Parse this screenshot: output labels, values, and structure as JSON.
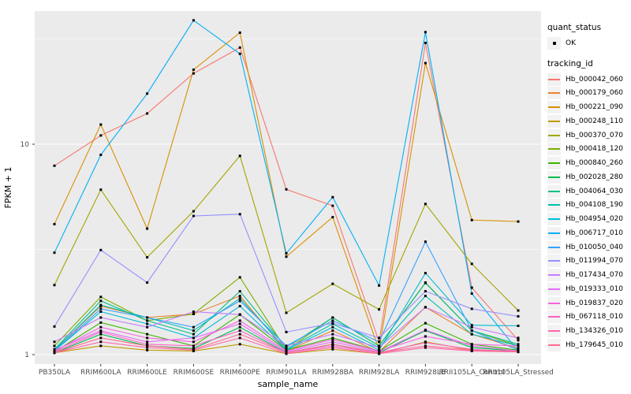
{
  "figure": {
    "background": "#FFFFFF",
    "panel_bg": "#EBEBEB",
    "grid_color": "#FFFFFF",
    "axis_text_color": "#4D4D4D",
    "tick_mark_color": "#333333",
    "point_color": "#000000",
    "legend_key_bg": "#F2F2F2"
  },
  "axes": {
    "x_title": "sample_name",
    "y_title": "FPKM + 1",
    "y_tick_labels": [
      "10",
      "1"
    ]
  },
  "legend": {
    "quant_status_title": "quant_status",
    "quant_status_items": [
      {
        "label": "OK",
        "marker": "point"
      }
    ],
    "tracking_title": "tracking_id"
  },
  "chart_data": {
    "type": "line",
    "title": "",
    "xlabel": "sample_name",
    "ylabel": "FPKM + 1",
    "y_scale": "log10",
    "y_major_ticks": [
      1,
      10
    ],
    "y_minor_gridlines": [
      3.162,
      31.62
    ],
    "ylim_log10": [
      -0.05,
      1.64
    ],
    "grid": true,
    "legend_position": "right",
    "marker": "black-point",
    "categories": [
      "PB350LA",
      "RRIM600LA",
      "RRIM600LE",
      "RRIM600SE",
      "RRIM600PE",
      "RRIM901LA",
      "RRIM928BA",
      "RRIM928LA",
      "RRIM928LB",
      "RRII105LA_Control",
      "RRII105LA_Stressed"
    ],
    "series": [
      {
        "name": "Hb_000042_060",
        "color": "#F8766D",
        "values": [
          7.9,
          11.0,
          14.0,
          21.7,
          28.8,
          6.1,
          5.1,
          1.15,
          30.3,
          2.08,
          1.17
        ]
      },
      {
        "name": "Hb_000179_060",
        "color": "#EA8331",
        "values": [
          1.05,
          1.7,
          1.5,
          1.56,
          1.9,
          1.04,
          1.3,
          1.03,
          1.68,
          1.25,
          1.07
        ]
      },
      {
        "name": "Hb_000221_090",
        "color": "#D89000",
        "values": [
          4.17,
          12.4,
          3.97,
          22.6,
          33.9,
          2.92,
          4.5,
          1.05,
          24.3,
          4.36,
          4.29
        ]
      },
      {
        "name": "Hb_000248_110",
        "color": "#C09B00",
        "values": [
          1.02,
          1.1,
          1.05,
          1.04,
          1.12,
          1.01,
          1.06,
          1.01,
          1.15,
          1.05,
          1.03
        ]
      },
      {
        "name": "Hb_000370_070",
        "color": "#A3A500",
        "values": [
          2.14,
          6.08,
          2.9,
          4.8,
          8.8,
          1.58,
          2.17,
          1.64,
          5.2,
          2.7,
          1.62
        ]
      },
      {
        "name": "Hb_000418_120",
        "color": "#7CAE00",
        "values": [
          1.1,
          1.88,
          1.45,
          1.56,
          2.33,
          1.05,
          1.5,
          1.1,
          2.2,
          1.3,
          1.1
        ]
      },
      {
        "name": "Hb_000840_260",
        "color": "#39B600",
        "values": [
          1.03,
          1.42,
          1.25,
          1.1,
          1.55,
          1.05,
          1.2,
          1.04,
          1.41,
          1.12,
          1.05
        ]
      },
      {
        "name": "Hb_002028_280",
        "color": "#00BB4E",
        "values": [
          1.02,
          1.25,
          1.1,
          1.07,
          1.35,
          1.02,
          1.12,
          1.02,
          1.3,
          1.08,
          1.04
        ]
      },
      {
        "name": "Hb_004064_030",
        "color": "#00C087",
        "values": [
          1.06,
          1.8,
          1.45,
          1.25,
          2.0,
          1.08,
          1.5,
          1.1,
          2.19,
          1.3,
          1.12
        ]
      },
      {
        "name": "Hb_004108_190",
        "color": "#00C0AF",
        "values": [
          1.05,
          1.72,
          1.5,
          1.3,
          1.85,
          1.06,
          1.4,
          1.08,
          1.9,
          1.25,
          1.1
        ]
      },
      {
        "name": "Hb_004954_020",
        "color": "#00BCD8",
        "values": [
          1.04,
          1.6,
          1.4,
          1.2,
          1.7,
          1.05,
          1.35,
          1.05,
          2.44,
          1.38,
          1.37
        ]
      },
      {
        "name": "Hb_006717_010",
        "color": "#00B0F6",
        "values": [
          3.05,
          8.9,
          17.4,
          38.8,
          26.9,
          3.03,
          5.6,
          2.13,
          34.1,
          1.95,
          1.04
        ]
      },
      {
        "name": "Hb_010050_040",
        "color": "#35A2FF",
        "values": [
          1.04,
          1.65,
          1.5,
          1.35,
          1.8,
          1.1,
          1.45,
          1.15,
          3.44,
          1.3,
          1.05
        ]
      },
      {
        "name": "Hb_011994_070",
        "color": "#9590FF",
        "values": [
          1.36,
          3.14,
          2.2,
          4.56,
          4.65,
          1.28,
          1.41,
          1.2,
          2.0,
          1.65,
          1.52
        ]
      },
      {
        "name": "Hb_017434_070",
        "color": "#C77CFF",
        "values": [
          1.15,
          1.5,
          1.35,
          1.6,
          1.55,
          1.1,
          1.25,
          1.08,
          1.68,
          1.35,
          1.2
        ]
      },
      {
        "name": "Hb_019333_010",
        "color": "#E36EF6",
        "values": [
          1.05,
          1.3,
          1.15,
          1.2,
          1.4,
          1.03,
          1.15,
          1.03,
          1.31,
          1.1,
          1.04
        ]
      },
      {
        "name": "Hb_019837_020",
        "color": "#F763E0",
        "values": [
          1.04,
          1.35,
          1.2,
          1.15,
          1.45,
          1.04,
          1.18,
          1.04,
          1.22,
          1.12,
          1.1
        ]
      },
      {
        "name": "Hb_067118_010",
        "color": "#FF61C9",
        "values": [
          1.03,
          1.28,
          1.12,
          1.1,
          1.3,
          1.02,
          1.1,
          1.02,
          1.14,
          1.06,
          1.03
        ]
      },
      {
        "name": "Hb_134326_010",
        "color": "#FF67AC",
        "values": [
          1.02,
          1.15,
          1.08,
          1.05,
          1.2,
          1.01,
          1.08,
          1.01,
          1.08,
          1.04,
          1.03
        ]
      },
      {
        "name": "Hb_179645_010",
        "color": "#FF6C90",
        "values": [
          1.02,
          1.2,
          1.1,
          1.06,
          1.25,
          1.02,
          1.12,
          1.02,
          1.1,
          1.05,
          1.04
        ]
      }
    ]
  }
}
